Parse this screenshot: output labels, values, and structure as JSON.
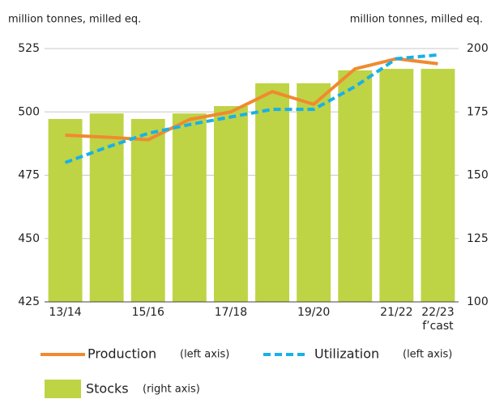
{
  "chart_data": {
    "type": "combo",
    "ylabel": "million tonnes, milled eq.",
    "y2label": "million tonnes, milled eq.",
    "categories": [
      "13/14",
      null,
      "15/16",
      null,
      "17/18",
      null,
      "19/20",
      null,
      "21/22",
      "22/23"
    ],
    "annotation": "f’cast",
    "ylim": [
      425,
      525
    ],
    "yticks": [
      425,
      450,
      475,
      500,
      525
    ],
    "y2lim": [
      100,
      200
    ],
    "y2ticks": [
      100,
      125,
      150,
      175,
      200
    ],
    "grid": true,
    "series": [
      {
        "name": "Stocks",
        "type": "bar",
        "axis": "y2",
        "color": "#bed445",
        "note": "(right axis)",
        "values": [
          172.2,
          174.4,
          172.2,
          174.4,
          177.3,
          186.3,
          186.3,
          191.4,
          192,
          192
        ]
      },
      {
        "name": "Production",
        "type": "line",
        "color": "#f08a30",
        "note": "(left axis)",
        "values": [
          490.8,
          490,
          489,
          497,
          500,
          508,
          503,
          517,
          521,
          519
        ]
      },
      {
        "name": "Utilization",
        "type": "dashed-line",
        "color": "#1ab0e8",
        "note": "(left axis)",
        "values": [
          480,
          486,
          491.5,
          495,
          498,
          501,
          501,
          510,
          521,
          522.5
        ]
      }
    ]
  }
}
